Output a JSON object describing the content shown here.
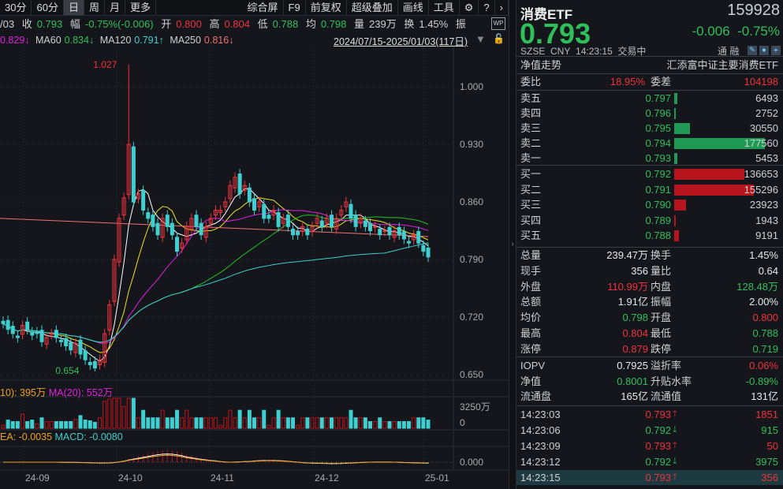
{
  "toolbar": {
    "periods": [
      "30分",
      "60分",
      "日",
      "周",
      "月",
      "更多"
    ],
    "active": "日",
    "tools": [
      "综合屏",
      "F9",
      "前复权",
      "超级叠加",
      "画线",
      "工具"
    ],
    "settings_icon": "gear-icon",
    "help_icon": "question-icon",
    "more_icon": "chevron-right-icon"
  },
  "quote_line": {
    "date": "/03",
    "close_label": "收",
    "close": "0.793",
    "chg_label": "幅",
    "chg": "-0.75%(-0.006)",
    "open_label": "开",
    "open": "0.800",
    "high_label": "高",
    "high": "0.804",
    "low_label": "低",
    "low": "0.788",
    "avg_label": "均",
    "avg": "0.798",
    "vol_label": "量",
    "vol": "239万",
    "turn_label": "换",
    "turn": "1.45%",
    "amp_label": "振"
  },
  "ma_line": {
    "ma_prev": "0.829↓",
    "ma60_label": "MA60",
    "ma60": "0.834↓",
    "ma120_label": "MA120",
    "ma120": "0.791↑",
    "ma250_label": "MA250",
    "ma250": "0.816↓",
    "range": "2024/07/15-2025/01/03(117日)"
  },
  "vol_legend": {
    "ma10": "10): 395万",
    "ma20": "MA(20): 552万",
    "axis_top": "3250万",
    "axis_zero": "0"
  },
  "macd_legend": {
    "dea": "EA: -0.0035",
    "macd": "MACD: -0.0080",
    "axis_zero": "0.000"
  },
  "chart_data": {
    "type": "candlestick",
    "price_ticks": [
      "1.000",
      "0.930",
      "0.860",
      "0.790",
      "0.720",
      "0.650"
    ],
    "x_ticks": [
      "24-09",
      "24-10",
      "24-11",
      "24-12",
      "25-01"
    ],
    "max_label": "1.027",
    "min_label": "0.654",
    "closes": [
      0.712,
      0.705,
      0.7,
      0.695,
      0.71,
      0.705,
      0.698,
      0.7,
      0.69,
      0.695,
      0.7,
      0.695,
      0.69,
      0.685,
      0.68,
      0.688,
      0.675,
      0.668,
      0.662,
      0.658,
      0.668,
      0.7,
      0.735,
      0.79,
      0.84,
      0.865,
      0.93,
      0.86,
      0.87,
      0.85,
      0.84,
      0.83,
      0.82,
      0.84,
      0.83,
      0.82,
      0.8,
      0.81,
      0.83,
      0.84,
      0.83,
      0.82,
      0.83,
      0.84,
      0.85,
      0.85,
      0.86,
      0.88,
      0.89,
      0.87,
      0.88,
      0.86,
      0.85,
      0.86,
      0.84,
      0.84,
      0.85,
      0.83,
      0.84,
      0.83,
      0.82,
      0.82,
      0.83,
      0.82,
      0.83,
      0.84,
      0.83,
      0.84,
      0.83,
      0.84,
      0.85,
      0.86,
      0.84,
      0.83,
      0.84,
      0.83,
      0.825,
      0.83,
      0.82,
      0.825,
      0.82,
      0.825,
      0.82,
      0.815,
      0.81,
      0.82,
      0.81,
      0.8,
      0.793
    ],
    "high": 1.027,
    "low": 0.654
  },
  "header": {
    "name": "消费ETF",
    "code": "159928",
    "price": "0.793",
    "change": "-0.006",
    "pct": "-0.75%",
    "exchange": "SZSE",
    "currency": "CNY",
    "time": "14:23:15",
    "status": "交易中",
    "tags": [
      "通",
      "融"
    ]
  },
  "nav": {
    "label": "净值走势",
    "fund": "汇添富中证主要消费ETF"
  },
  "weibi": {
    "label": "委比",
    "value": "18.95%",
    "diff_label": "委差",
    "diff": "104198"
  },
  "asks": [
    {
      "label": "卖五",
      "price": "0.797",
      "vol": "6493",
      "v": 6493
    },
    {
      "label": "卖四",
      "price": "0.796",
      "vol": "2752",
      "v": 2752
    },
    {
      "label": "卖三",
      "price": "0.795",
      "vol": "30550",
      "v": 30550
    },
    {
      "label": "卖二",
      "price": "0.794",
      "vol": "177560",
      "v": 177560
    },
    {
      "label": "卖一",
      "price": "0.793",
      "vol": "5453",
      "v": 5453
    }
  ],
  "bids": [
    {
      "label": "买一",
      "price": "0.792",
      "vol": "136653",
      "v": 136653
    },
    {
      "label": "买二",
      "price": "0.791",
      "vol": "155296",
      "v": 155296
    },
    {
      "label": "买三",
      "price": "0.790",
      "vol": "23923",
      "v": 23923
    },
    {
      "label": "买四",
      "price": "0.789",
      "vol": "1943",
      "v": 1943
    },
    {
      "label": "买五",
      "price": "0.788",
      "vol": "9191",
      "v": 9191
    }
  ],
  "stats": [
    {
      "l1": "总量",
      "v1": "239.47万",
      "c1": "white",
      "l2": "换手",
      "v2": "1.45%",
      "c2": "white"
    },
    {
      "l1": "现手",
      "v1": "356",
      "c1": "white",
      "l2": "量比",
      "v2": "0.64",
      "c2": "white"
    },
    {
      "l1": "外盘",
      "v1": "110.99万",
      "c1": "red",
      "l2": "内盘",
      "v2": "128.48万",
      "c2": "green"
    },
    {
      "l1": "总额",
      "v1": "1.91亿",
      "c1": "white",
      "l2": "振幅",
      "v2": "2.00%",
      "c2": "white"
    },
    {
      "l1": "均价",
      "v1": "0.798",
      "c1": "green",
      "l2": "开盘",
      "v2": "0.800",
      "c2": "red"
    },
    {
      "l1": "最高",
      "v1": "0.804",
      "c1": "red",
      "l2": "最低",
      "v2": "0.788",
      "c2": "green"
    },
    {
      "l1": "涨停",
      "v1": "0.879",
      "c1": "red",
      "l2": "跌停",
      "v2": "0.719",
      "c2": "green"
    }
  ],
  "stats2": [
    {
      "l1": "IOPV",
      "v1": "0.7925",
      "c1": "white",
      "l2": "溢折率",
      "v2": "0.06%",
      "c2": "red"
    },
    {
      "l1": "净值",
      "v1": "0.8001",
      "c1": "green",
      "l2": "升贴水率",
      "v2": "-0.89%",
      "c2": "green"
    },
    {
      "l1": "流通盘",
      "v1": "165亿",
      "c1": "white",
      "l2": "流通值",
      "v2": "131亿",
      "c2": "white"
    }
  ],
  "trades": [
    {
      "time": "14:23:03",
      "price": "0.793",
      "dir": "up",
      "vol": "1851"
    },
    {
      "time": "14:23:06",
      "price": "0.792",
      "dir": "down",
      "vol": "915"
    },
    {
      "time": "14:23:09",
      "price": "0.793",
      "dir": "up",
      "vol": "50"
    },
    {
      "time": "14:23:12",
      "price": "0.792",
      "dir": "down",
      "vol": "3975"
    },
    {
      "time": "14:23:15",
      "price": "0.793",
      "dir": "up",
      "vol": "356"
    }
  ],
  "colors": {
    "up": "#f0323c",
    "down": "#3ecfd0",
    "green": "#2fbf5a",
    "bg": "#14161b"
  }
}
